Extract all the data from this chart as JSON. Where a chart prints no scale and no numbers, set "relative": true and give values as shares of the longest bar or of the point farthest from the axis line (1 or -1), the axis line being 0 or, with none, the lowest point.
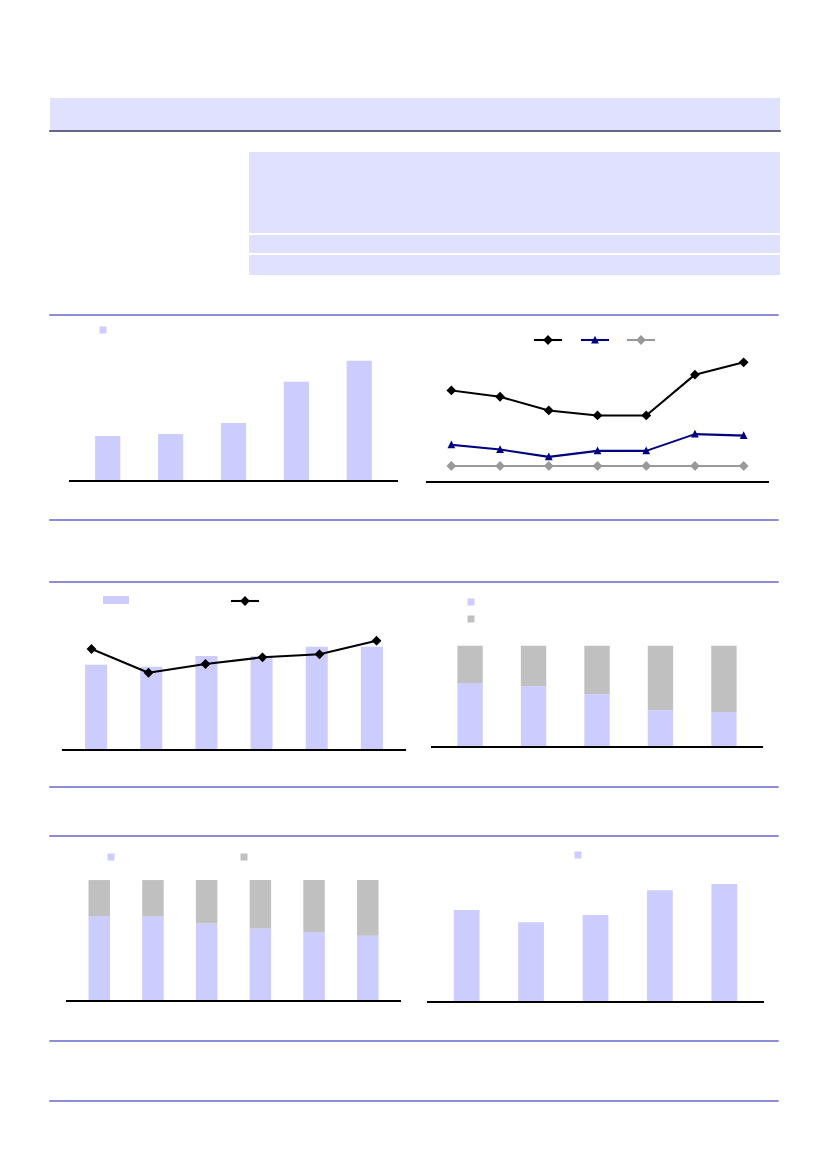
{
  "chart_data": [
    {
      "type": "bar",
      "relative": true,
      "categories": [
        null,
        null,
        null,
        null,
        null
      ],
      "series": [
        {
          "color": "#ccccff",
          "values": [
            0.375,
            0.392,
            0.483,
            0.825,
            1
          ]
        }
      ]
    },
    {
      "type": "line",
      "relative": true,
      "categories": [
        null,
        null,
        null,
        null,
        null,
        null,
        null
      ],
      "series": [
        {
          "color": "#000000",
          "marker": "diamond",
          "values": [
            0.765,
            0.712,
            0.598,
            0.556,
            0.556,
            0.897,
            1
          ]
        },
        {
          "color": "#000080",
          "marker": "triangle",
          "values": [
            0.31,
            0.271,
            0.21,
            0.26,
            0.26,
            0.4,
            0.388
          ]
        },
        {
          "color": "#999999",
          "marker": "diamond",
          "values": [
            0.134,
            0.134,
            0.134,
            0.134,
            0.134,
            0.134,
            0.134
          ]
        }
      ]
    },
    {
      "type": "bar",
      "relative": true,
      "categories": [
        null,
        null,
        null,
        null,
        null,
        null
      ],
      "series": [
        {
          "color": "#ccccff",
          "values": [
            0.826,
            0.806,
            0.91,
            0.91,
            1,
            1
          ]
        }
      ]
    },
    {
      "type": "line",
      "relative": true,
      "categories": [
        null,
        null,
        null,
        null,
        null,
        null
      ],
      "series": [
        {
          "color": "#000000",
          "marker": "diamond",
          "values": [
            0.924,
            0.707,
            0.787,
            0.848,
            0.876,
            1
          ]
        }
      ]
    },
    {
      "type": "bar",
      "relative": true,
      "stacked": true,
      "categories": [
        null,
        null,
        null,
        null,
        null
      ],
      "series": [
        {
          "color": "#ccccff",
          "values": [
            0.631,
            0.601,
            0.522,
            0.366,
            0.344
          ]
        },
        {
          "color": "#c0c0c0",
          "values": [
            0.369,
            0.399,
            0.478,
            0.634,
            0.656
          ]
        }
      ]
    },
    {
      "type": "bar",
      "relative": true,
      "stacked": true,
      "categories": [
        null,
        null,
        null,
        null,
        null,
        null
      ],
      "series": [
        {
          "color": "#ccccff",
          "values": [
            0.7,
            0.7,
            0.64,
            0.6,
            0.57,
            0.54
          ]
        },
        {
          "color": "#c0c0c0",
          "values": [
            0.3,
            0.3,
            0.36,
            0.4,
            0.43,
            0.46
          ]
        }
      ]
    },
    {
      "type": "bar",
      "relative": true,
      "categories": [
        null,
        null,
        null,
        null,
        null
      ],
      "series": [
        {
          "color": "#ccccff",
          "values": [
            0.78,
            0.675,
            0.737,
            0.947,
            1
          ]
        }
      ]
    }
  ]
}
